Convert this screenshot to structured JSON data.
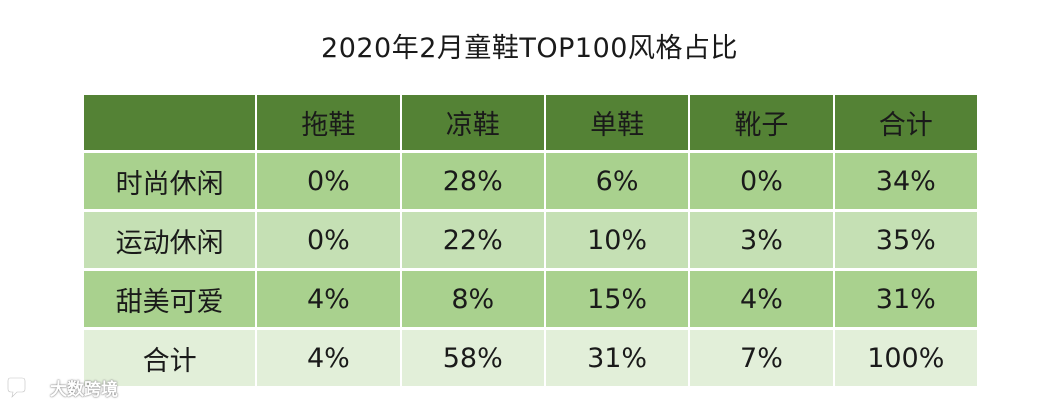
{
  "chart_data": {
    "type": "table",
    "title": "2020年2月童鞋TOP100风格占比",
    "columns": [
      "",
      "拖鞋",
      "凉鞋",
      "单鞋",
      "靴子",
      "合计"
    ],
    "rows": [
      {
        "label": "时尚休闲",
        "values": [
          "0%",
          "28%",
          "6%",
          "0%",
          "34%"
        ]
      },
      {
        "label": "运动休闲",
        "values": [
          "0%",
          "22%",
          "10%",
          "3%",
          "35%"
        ]
      },
      {
        "label": "甜美可爱",
        "values": [
          "4%",
          "8%",
          "15%",
          "4%",
          "31%"
        ]
      },
      {
        "label": "合计",
        "values": [
          "4%",
          "58%",
          "31%",
          "7%",
          "100%"
        ]
      }
    ],
    "colors": {
      "header": "#548235",
      "row_dark": "#a9d18e",
      "row_light": "#c5e0b4",
      "row_total": "#e2efd9"
    }
  },
  "watermark": {
    "text": "大数跨境",
    "icon": "chat-bubble-logo-icon"
  }
}
